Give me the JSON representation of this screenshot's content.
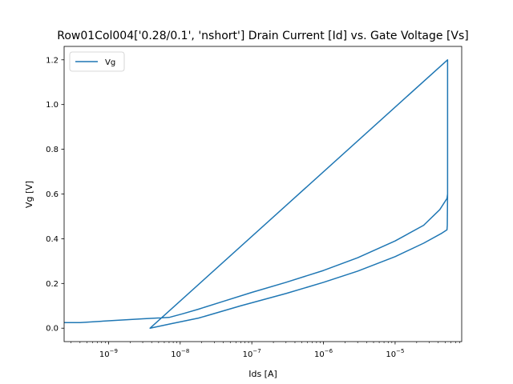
{
  "chart_data": {
    "type": "line",
    "title": "Row01Col004['0.28/0.1', 'nshort'] Drain Current [Id] vs. Gate Voltage [Vs]",
    "xlabel": "Ids [A]",
    "ylabel": "Vg [V]",
    "xscale": "log",
    "xlim": [
      2.4e-10,
      8.5e-05
    ],
    "ylim": [
      -0.06,
      1.26
    ],
    "x_ticks": [
      {
        "value": 1e-09,
        "base": "10",
        "exp": "−9"
      },
      {
        "value": 1e-08,
        "base": "10",
        "exp": "−8"
      },
      {
        "value": 1e-07,
        "base": "10",
        "exp": "−7"
      },
      {
        "value": 1e-06,
        "base": "10",
        "exp": "−6"
      },
      {
        "value": 1e-05,
        "base": "10",
        "exp": "−5"
      }
    ],
    "y_ticks": [
      {
        "value": 0.0,
        "label": "0.0"
      },
      {
        "value": 0.2,
        "label": "0.2"
      },
      {
        "value": 0.4,
        "label": "0.4"
      },
      {
        "value": 0.6,
        "label": "0.6"
      },
      {
        "value": 0.8,
        "label": "0.8"
      },
      {
        "value": 1.0,
        "label": "1.0"
      },
      {
        "value": 1.2,
        "label": "1.2"
      }
    ],
    "grid": false,
    "legend": {
      "placement": "top-left",
      "entries": [
        "Vg"
      ]
    },
    "color": "#1f77b4",
    "series": [
      {
        "name": "Vg",
        "points": [
          [
            2.4e-10,
            0.025
          ],
          [
            4e-10,
            0.025
          ],
          [
            1e-09,
            0.033
          ],
          [
            3e-09,
            0.042
          ],
          [
            7e-09,
            0.048
          ],
          [
            1.1e-08,
            0.065
          ],
          [
            1.8e-08,
            0.085
          ],
          [
            4e-08,
            0.12
          ],
          [
            1e-07,
            0.16
          ],
          [
            3e-07,
            0.205
          ],
          [
            1e-06,
            0.258
          ],
          [
            3e-06,
            0.315
          ],
          [
            1e-05,
            0.39
          ],
          [
            2.5e-05,
            0.46
          ],
          [
            4.2e-05,
            0.53
          ],
          [
            5.3e-05,
            0.58
          ],
          [
            5.4e-05,
            0.6
          ],
          [
            5.4e-05,
            1.2
          ],
          [
            3.8e-09,
            0.0
          ],
          [
            7.5e-09,
            0.02
          ],
          [
            1.8e-08,
            0.045
          ],
          [
            7e-08,
            0.1
          ],
          [
            3e-07,
            0.155
          ],
          [
            1e-06,
            0.205
          ],
          [
            3e-06,
            0.255
          ],
          [
            1e-05,
            0.32
          ],
          [
            2.5e-05,
            0.38
          ],
          [
            4.5e-05,
            0.425
          ],
          [
            5.3e-05,
            0.44
          ],
          [
            5.35e-05,
            0.46
          ],
          [
            5.4e-05,
            0.6
          ]
        ]
      }
    ]
  }
}
